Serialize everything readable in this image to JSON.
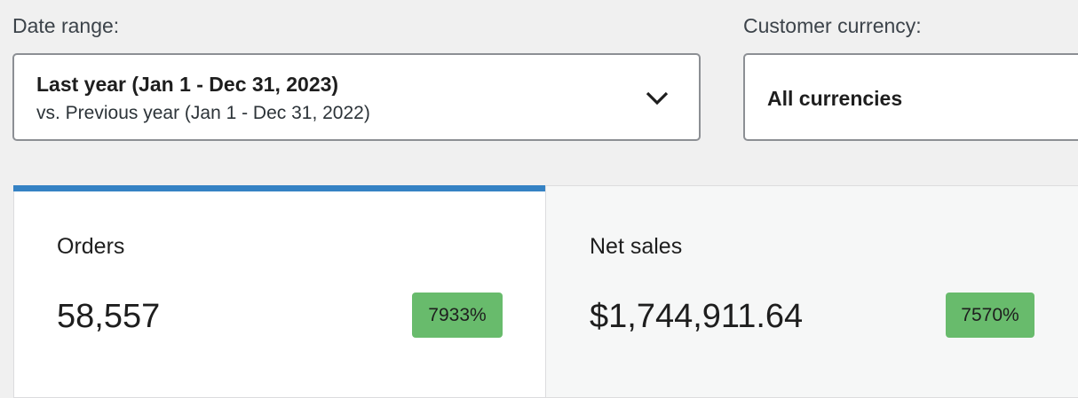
{
  "filters": {
    "date_range": {
      "label": "Date range:",
      "primary": "Last year (Jan 1 - Dec 31, 2023)",
      "secondary": "vs. Previous year (Jan 1 - Dec 31, 2022)"
    },
    "currency": {
      "label": "Customer currency:",
      "value": "All currencies"
    }
  },
  "metrics": [
    {
      "label": "Orders",
      "value": "58,557",
      "delta": "7933%"
    },
    {
      "label": "Net sales",
      "value": "$1,744,911.64",
      "delta": "7570%"
    }
  ]
}
